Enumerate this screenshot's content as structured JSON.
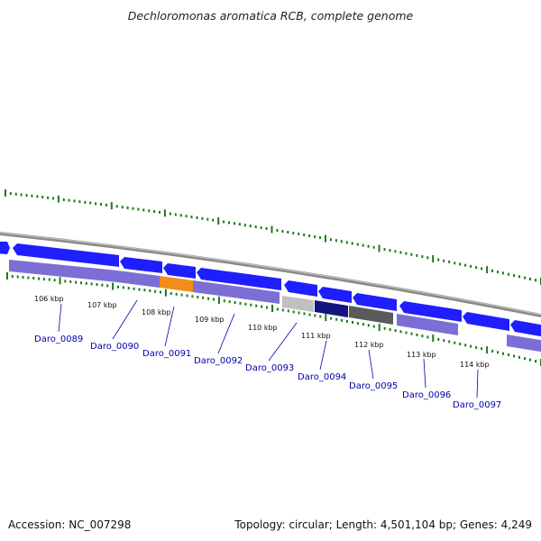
{
  "title": "Dechloromonas aromatica RCB, complete genome",
  "accession": "Accession: NC_007298",
  "summary": "Topology: circular; Length: 4,501,104 bp; Genes: 4,249",
  "colors": {
    "backbone": "#8a8a8a",
    "forward_cds": "#1e1eff",
    "tick_green": "#1a7a1a",
    "label_blue": "#0000aa",
    "track_purple": "#7b6fd6",
    "track_orange": "#f28c1c",
    "track_lightgray": "#c0c0c0",
    "track_navy": "#141480",
    "track_darkgray": "#5a5a5a"
  },
  "scale_labels": [
    "106 kbp",
    "107 kbp",
    "108 kbp",
    "109 kbp",
    "110 kbp",
    "111 kbp",
    "112 kbp",
    "113 kbp",
    "114 kbp"
  ],
  "genes": [
    "Daro_0089",
    "Daro_0090",
    "Daro_0091",
    "Daro_0092",
    "Daro_0093",
    "Daro_0094",
    "Daro_0095",
    "Daro_0096",
    "Daro_0097"
  ]
}
